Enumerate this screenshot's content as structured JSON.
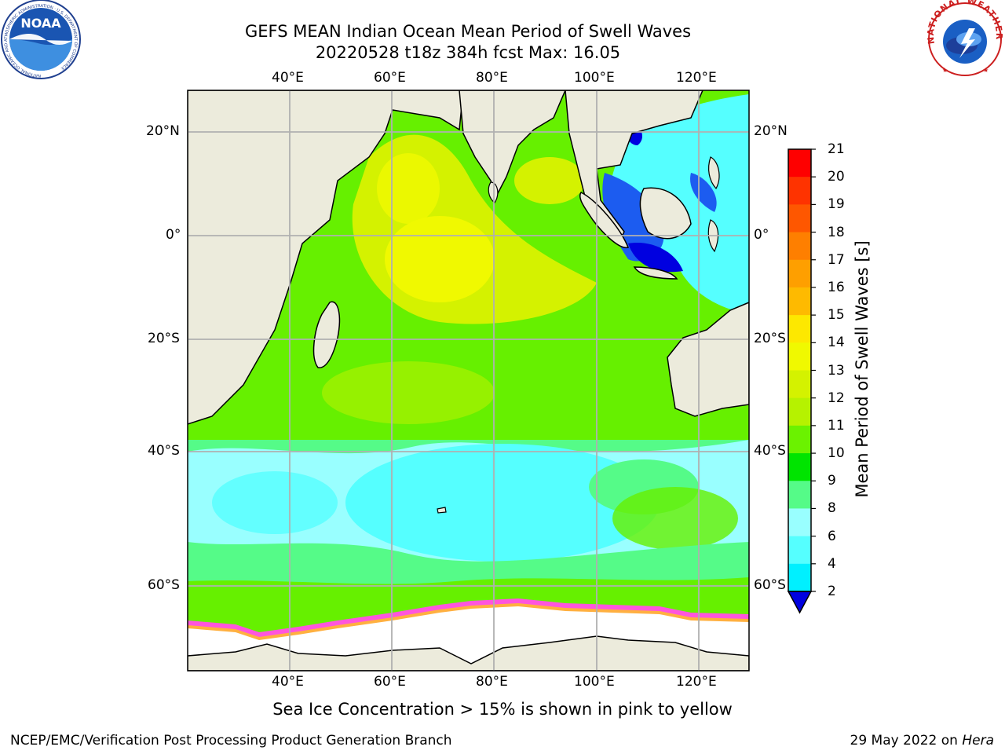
{
  "header": {
    "title_line1": "GEFS MEAN Indian Ocean Mean Period of Swell Waves",
    "title_line2": "20220528 t18z 384h fcst   Max: 16.05"
  },
  "logos": {
    "noaa_text": "NOAA",
    "noaa_ring_text": "NATIONAL OCEANIC AND ATMOSPHERIC ADMINISTRATION · U.S. DEPARTMENT OF COMMERCE",
    "nws_ring_text": "NATIONAL WEATHER SERVICE"
  },
  "map": {
    "lon_labels": [
      "40°E",
      "60°E",
      "80°E",
      "100°E",
      "120°E"
    ],
    "lat_labels": [
      "20°N",
      "0°",
      "20°S",
      "40°S",
      "60°S"
    ],
    "land_color": "#ecebdc",
    "sea_ice_color": "#ffffff"
  },
  "colorbar": {
    "title": "Mean Period of Swell Waves [s]",
    "ticks": [
      "21",
      "20",
      "19",
      "18",
      "17",
      "16",
      "15",
      "14",
      "13",
      "12",
      "11",
      "10",
      "9",
      "8",
      "6",
      "4",
      "2"
    ],
    "colors": [
      "#fe0000",
      "#fe3300",
      "#fe5700",
      "#fe7f00",
      "#fe9f00",
      "#feba00",
      "#fde800",
      "#f0f900",
      "#d4f200",
      "#b6f200",
      "#6bf200",
      "#00e400",
      "#55fb88",
      "#99ffff",
      "#55ffff",
      "#00f0ff",
      "#0088ff",
      "#0000e0"
    ]
  },
  "footer": {
    "ice_note": "Sea Ice Concentration > 15% is shown in pink to yellow",
    "left_credit": "NCEP/EMC/Verification Post Processing Product Generation Branch",
    "date": "29 May 2022 on",
    "machine": "Hera"
  }
}
